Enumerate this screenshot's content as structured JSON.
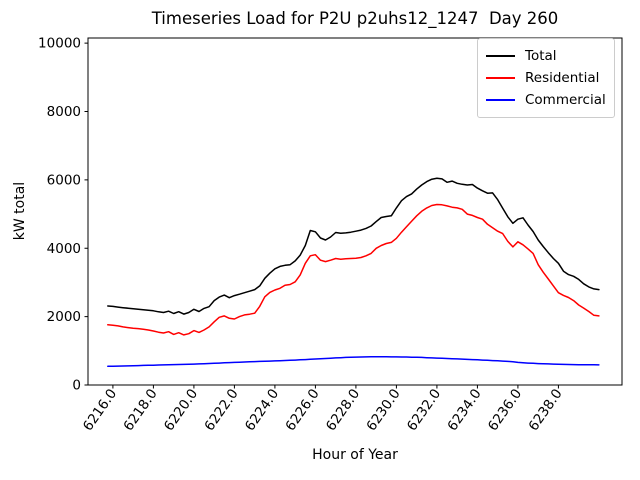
{
  "chart_data": {
    "type": "line",
    "title": "Timeseries Load for P2U p2uhs12_1247  Day 260",
    "xlabel": "Hour of Year",
    "ylabel": "kW total",
    "xlim": [
      6214.77,
      6241.14
    ],
    "ylim": [
      0,
      10150
    ],
    "xticks": [
      6216,
      6218,
      6220,
      6222,
      6224,
      6226,
      6228,
      6230,
      6232,
      6234,
      6236,
      6238
    ],
    "xtick_labels": [
      "6216.0",
      "6218.0",
      "6220.0",
      "6222.0",
      "6224.0",
      "6226.0",
      "6228.0",
      "6230.0",
      "6232.0",
      "6234.0",
      "6236.0",
      "6238.0"
    ],
    "yticks": [
      0,
      2000,
      4000,
      6000,
      8000,
      10000
    ],
    "ytick_labels": [
      "0",
      "2000",
      "4000",
      "6000",
      "8000",
      "10000"
    ],
    "grid": false,
    "legend": {
      "position": "upper right",
      "labels": [
        "Total",
        "Residential",
        "Commercial"
      ]
    },
    "x_start": 6215.75,
    "x_step": 0.25,
    "x_end": 6240.0,
    "series": [
      {
        "name": "Total",
        "color": "#000000",
        "values": [
          2310,
          2300,
          2280,
          2260,
          2245,
          2230,
          2215,
          2200,
          2185,
          2170,
          2140,
          2120,
          2160,
          2090,
          2145,
          2075,
          2120,
          2215,
          2150,
          2240,
          2290,
          2470,
          2570,
          2630,
          2555,
          2615,
          2655,
          2700,
          2745,
          2790,
          2900,
          3120,
          3270,
          3400,
          3470,
          3500,
          3520,
          3630,
          3800,
          4080,
          4520,
          4480,
          4300,
          4240,
          4330,
          4460,
          4440,
          4450,
          4470,
          4500,
          4530,
          4580,
          4650,
          4780,
          4900,
          4930,
          4950,
          5180,
          5390,
          5510,
          5590,
          5730,
          5850,
          5950,
          6020,
          6045,
          6030,
          5930,
          5965,
          5900,
          5870,
          5850,
          5865,
          5760,
          5680,
          5610,
          5620,
          5420,
          5170,
          4920,
          4730,
          4850,
          4890,
          4680,
          4490,
          4240,
          4050,
          3870,
          3700,
          3560,
          3330,
          3230,
          3180,
          3090,
          2960,
          2870,
          2810,
          2790
        ]
      },
      {
        "name": "Residential",
        "color": "#ff0000",
        "values": [
          1760,
          1750,
          1730,
          1700,
          1680,
          1660,
          1650,
          1630,
          1610,
          1580,
          1545,
          1520,
          1560,
          1480,
          1530,
          1465,
          1500,
          1590,
          1540,
          1610,
          1700,
          1850,
          1980,
          2020,
          1950,
          1930,
          2000,
          2050,
          2070,
          2100,
          2300,
          2580,
          2710,
          2780,
          2830,
          2920,
          2940,
          3020,
          3220,
          3560,
          3780,
          3810,
          3650,
          3610,
          3650,
          3700,
          3680,
          3690,
          3700,
          3710,
          3730,
          3780,
          3850,
          4000,
          4080,
          4140,
          4170,
          4290,
          4470,
          4630,
          4790,
          4950,
          5080,
          5180,
          5250,
          5280,
          5270,
          5240,
          5200,
          5180,
          5140,
          5000,
          4960,
          4900,
          4850,
          4700,
          4600,
          4500,
          4430,
          4200,
          4040,
          4190,
          4100,
          3980,
          3850,
          3520,
          3300,
          3100,
          2900,
          2700,
          2620,
          2560,
          2470,
          2340,
          2250,
          2150,
          2040,
          2020
        ]
      },
      {
        "name": "Commercial",
        "color": "#0000ff",
        "values": [
          549,
          550,
          552,
          556,
          560,
          565,
          568,
          572,
          576,
          580,
          584,
          588,
          592,
          596,
          600,
          604,
          608,
          612,
          618,
          624,
          630,
          636,
          642,
          648,
          654,
          660,
          666,
          672,
          678,
          684,
          690,
          696,
          700,
          704,
          710,
          716,
          722,
          728,
          736,
          744,
          752,
          760,
          768,
          776,
          784,
          792,
          800,
          806,
          812,
          816,
          820,
          822,
          824,
          825,
          825,
          824,
          823,
          822,
          820,
          818,
          814,
          810,
          806,
          800,
          794,
          788,
          782,
          776,
          770,
          764,
          757,
          750,
          743,
          736,
          729,
          722,
          715,
          708,
          700,
          690,
          678,
          662,
          650,
          642,
          634,
          627,
          621,
          616,
          611,
          606,
          602,
          599,
          596,
          594,
          592,
          591,
          590,
          589
        ]
      }
    ]
  }
}
